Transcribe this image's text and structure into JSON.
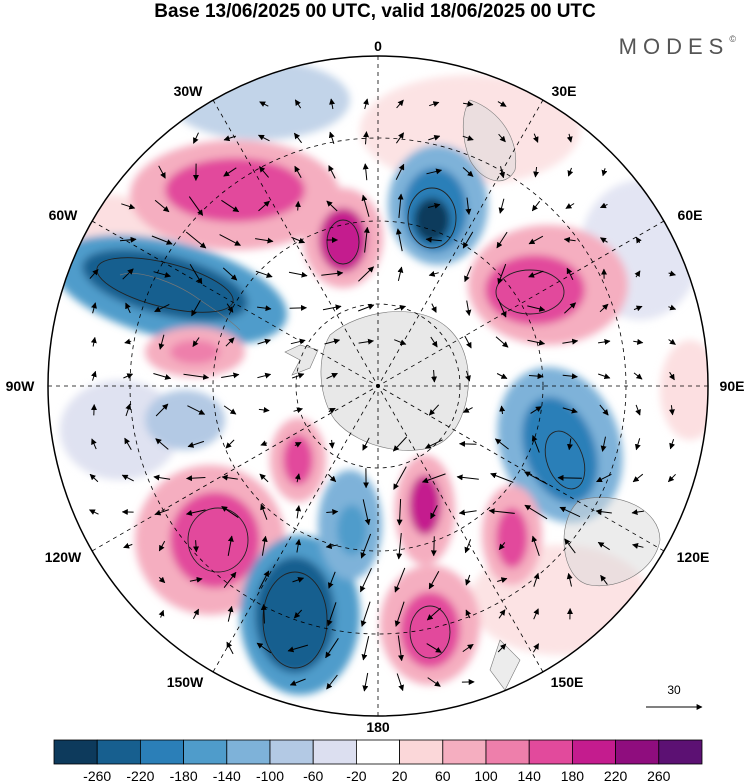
{
  "title": "Base 13/06/2025 00 UTC, valid 18/06/2025 00 UTC",
  "brand": "MODES",
  "brand_mark": "©",
  "longitude_labels": {
    "lon_0": "0",
    "lon_30e": "30E",
    "lon_60e": "60E",
    "lon_90e": "90E",
    "lon_120e": "120E",
    "lon_150e": "150E",
    "lon_180": "180",
    "lon_150w": "150W",
    "lon_120w": "120W",
    "lon_90w": "90W",
    "lon_60w": "60W",
    "lon_30w": "30W"
  },
  "reference_vector": {
    "label": "30"
  },
  "colorbar": {
    "colors": [
      "#0d3a5c",
      "#175f8f",
      "#2b7fb8",
      "#4f9ccb",
      "#7eb2d9",
      "#b3c9e4",
      "#dcdff0",
      "#ffffff",
      "#fbd7d9",
      "#f5aec0",
      "#ee7fab",
      "#e24a9c",
      "#c41c8e",
      "#8f0d7e",
      "#5c1173"
    ],
    "tick_labels": [
      "-260",
      "-220",
      "-180",
      "-140",
      "-100",
      "-60",
      "-20",
      "20",
      "60",
      "100",
      "140",
      "180",
      "220",
      "260"
    ]
  },
  "colors": {
    "neg_strong": "#175f8f",
    "neg_mid": "#4f9ccb",
    "neg_weak": "#b3c9e4",
    "pos_weak": "#fbd7d9",
    "pos_mid": "#ee7fab",
    "pos_strong": "#c41c8e"
  }
}
